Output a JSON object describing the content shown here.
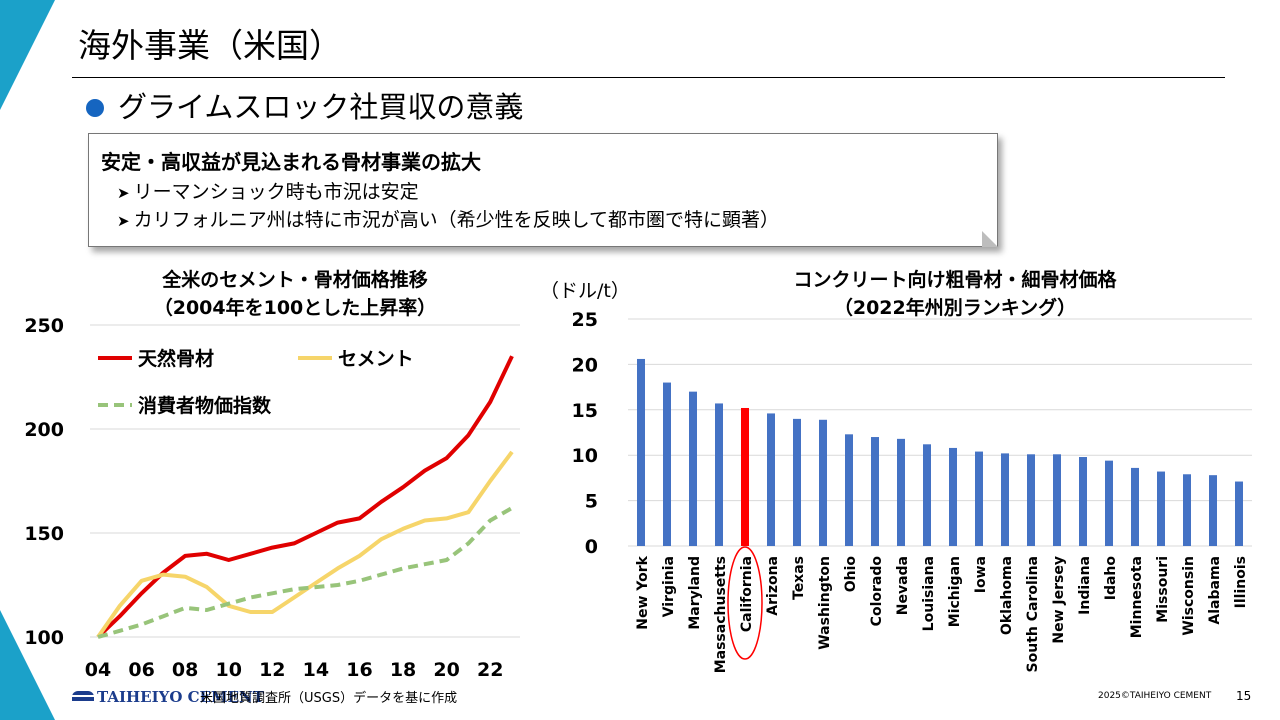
{
  "slide": {
    "title": "海外事業（米国）",
    "subtitle": "グライムスロック社買収の意義",
    "callout": {
      "heading": "安定・高収益が見込まれる骨材事業の拡大",
      "items": [
        "リーマンショック時も市況は安定",
        "カリフォルニア州は特に市況が高い（希少性を反映して都市圏で特に顕著）"
      ]
    },
    "footer": {
      "logo_text": "TAIHEIYO CEMENT",
      "source": "米国地質調査所（USGS）データを基に作成",
      "copyright": "2025©TAIHEIYO CEMENT",
      "page": "15"
    }
  },
  "chart_data": [
    {
      "type": "line",
      "title": "全米のセメント・骨材価格推移",
      "subtitle": "（2004年を100とした上昇率）",
      "xlabel": "",
      "ylabel": "",
      "x": [
        2004,
        2005,
        2006,
        2007,
        2008,
        2009,
        2010,
        2011,
        2012,
        2013,
        2014,
        2015,
        2016,
        2017,
        2018,
        2019,
        2020,
        2021,
        2022,
        2023
      ],
      "x_tick_values": [
        2004,
        2006,
        2008,
        2010,
        2012,
        2014,
        2016,
        2018,
        2020,
        2022
      ],
      "x_tick_labels": [
        "04",
        "06",
        "08",
        "10",
        "12",
        "14",
        "16",
        "18",
        "20",
        "22"
      ],
      "ylim": [
        100,
        250
      ],
      "y_ticks": [
        100,
        150,
        200,
        250
      ],
      "grid": true,
      "legend_position": "top-left",
      "series": [
        {
          "name": "天然骨材",
          "color": "#e00000",
          "dash": "solid",
          "values": [
            100,
            110,
            121,
            131,
            139,
            140,
            137,
            140,
            143,
            145,
            150,
            155,
            157,
            165,
            172,
            180,
            186,
            197,
            213,
            235
          ]
        },
        {
          "name": "セメント",
          "color": "#f6d56a",
          "dash": "solid",
          "values": [
            100,
            115,
            127,
            130,
            129,
            124,
            115,
            112,
            112,
            119,
            126,
            133,
            139,
            147,
            152,
            156,
            157,
            160,
            175,
            189
          ]
        },
        {
          "name": "消費者物価指数",
          "color": "#98c47a",
          "dash": "dashed",
          "values": [
            100,
            103,
            106,
            110,
            114,
            113,
            116,
            119,
            121,
            123,
            124,
            125,
            127,
            130,
            133,
            135,
            137,
            145,
            156,
            162
          ]
        }
      ]
    },
    {
      "type": "bar",
      "title": "コンクリート向け粗骨材・細骨材価格",
      "subtitle": "（2022年州別ランキング）",
      "unit_label": "（ドル/t）",
      "xlabel": "",
      "ylabel": "",
      "ylim": [
        0,
        25
      ],
      "y_ticks": [
        0,
        5,
        10,
        15,
        20,
        25
      ],
      "grid": true,
      "bar_color": "#4472c4",
      "highlight_color": "#ff0000",
      "highlight": "California",
      "categories": [
        "New York",
        "Virginia",
        "Maryland",
        "Massachusetts",
        "California",
        "Arizona",
        "Texas",
        "Washington",
        "Ohio",
        "Colorado",
        "Nevada",
        "Louisiana",
        "Michigan",
        "Iowa",
        "Oklahoma",
        "South Carolina",
        "New Jersey",
        "Indiana",
        "Idaho",
        "Minnesota",
        "Missouri",
        "Wisconsin",
        "Alabama",
        "Illinois"
      ],
      "values": [
        20.6,
        18.0,
        17.0,
        15.7,
        15.2,
        14.6,
        14.0,
        13.9,
        12.3,
        12.0,
        11.8,
        11.2,
        10.8,
        10.4,
        10.2,
        10.1,
        10.1,
        9.8,
        9.4,
        8.6,
        8.2,
        7.9,
        7.8,
        7.1
      ]
    }
  ]
}
